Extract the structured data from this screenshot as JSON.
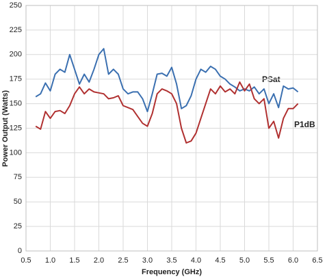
{
  "chart_data": {
    "type": "line",
    "xlabel": "Frequency (GHz)",
    "ylabel": "Power Output (Watts)",
    "x": [
      0.7,
      0.8,
      0.9,
      1.0,
      1.1,
      1.2,
      1.3,
      1.4,
      1.5,
      1.6,
      1.7,
      1.8,
      1.9,
      2.0,
      2.1,
      2.2,
      2.3,
      2.4,
      2.5,
      2.6,
      2.7,
      2.8,
      2.9,
      3.0,
      3.1,
      3.2,
      3.3,
      3.4,
      3.5,
      3.6,
      3.7,
      3.8,
      3.9,
      4.0,
      4.1,
      4.2,
      4.3,
      4.4,
      4.5,
      4.6,
      4.7,
      4.8,
      4.9,
      5.0,
      5.1,
      5.2,
      5.3,
      5.4,
      5.5,
      5.6,
      5.7,
      5.8,
      5.9,
      6.0,
      6.1
    ],
    "series": [
      {
        "name": "PSat",
        "color": "#3a6fb0",
        "values": [
          157,
          160,
          171,
          163,
          180,
          185,
          182,
          200,
          185,
          170,
          180,
          172,
          185,
          200,
          206,
          180,
          185,
          180,
          165,
          160,
          162,
          162,
          155,
          142,
          160,
          180,
          181,
          178,
          187,
          170,
          145,
          148,
          158,
          175,
          185,
          182,
          188,
          185,
          178,
          175,
          170,
          167,
          163,
          165,
          163,
          167,
          160,
          165,
          150,
          160,
          146,
          168,
          165,
          166,
          162
        ]
      },
      {
        "name": "P1dB",
        "color": "#b03030",
        "values": [
          127,
          124,
          142,
          135,
          142,
          143,
          140,
          148,
          160,
          167,
          160,
          165,
          162,
          161,
          160,
          155,
          156,
          158,
          148,
          146,
          144,
          137,
          130,
          127,
          140,
          160,
          165,
          163,
          160,
          150,
          125,
          110,
          112,
          120,
          135,
          150,
          165,
          160,
          168,
          162,
          165,
          160,
          172,
          163,
          170,
          155,
          150,
          155,
          125,
          132,
          115,
          135,
          145,
          145,
          150
        ]
      }
    ],
    "xlim": [
      0.5,
      6.5
    ],
    "xticks": [
      0.5,
      {
        "value": 1,
        "label": "1.0"
      },
      1.5,
      {
        "value": 2,
        "label": "2.0"
      },
      2.5,
      {
        "value": 3,
        "label": "3.0"
      },
      3.5,
      {
        "value": 4,
        "label": "4.0"
      },
      4.5,
      {
        "value": 5,
        "label": "5.0"
      },
      5.5,
      {
        "value": 6,
        "label": "6.0"
      },
      6.5
    ],
    "ylim": [
      0,
      250
    ],
    "yticks": [
      0,
      25,
      50,
      75,
      100,
      125,
      150,
      175,
      200,
      225,
      250
    ],
    "grid": true
  }
}
